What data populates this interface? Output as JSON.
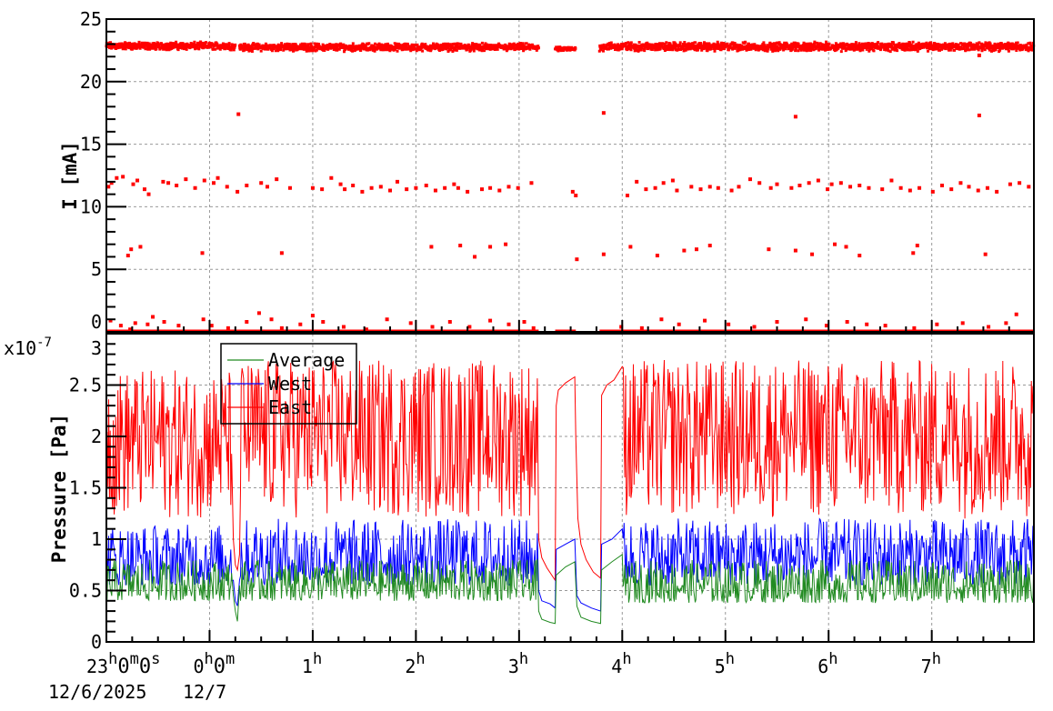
{
  "chart_data": [
    {
      "type": "scatter",
      "ylabel": "I [mA]",
      "xlim_hours": [
        -1,
        7.99
      ],
      "ylim": [
        0,
        25
      ],
      "yticks": [
        "0",
        "5",
        "10",
        "15",
        "20",
        "25"
      ],
      "grid": true,
      "color": "#ff0000",
      "dense_band": [
        {
          "from": -1,
          "to": 0.25,
          "min": 22.5,
          "max": 23.2
        },
        {
          "from": 0.29,
          "to": 3.19,
          "min": 22.4,
          "max": 23.1
        },
        {
          "from": 3.35,
          "to": 3.55,
          "min": 22.4,
          "max": 22.8
        },
        {
          "from": 3.78,
          "to": 7.99,
          "min": 22.4,
          "max": 23.2
        }
      ],
      "zero_line": [
        [
          -1,
          3.19
        ],
        [
          3.35,
          3.55
        ],
        [
          3.78,
          7.99
        ]
      ],
      "points": [
        [
          -0.98,
          11.6
        ],
        [
          -0.95,
          11.9
        ],
        [
          -0.9,
          12.3
        ],
        [
          -0.84,
          12.4
        ],
        [
          -0.74,
          11.8
        ],
        [
          -0.7,
          12.1
        ],
        [
          -0.63,
          11.4
        ],
        [
          -0.59,
          11.0
        ],
        [
          -0.45,
          12.0
        ],
        [
          -0.4,
          11.9
        ],
        [
          -0.32,
          11.7
        ],
        [
          -0.23,
          12.2
        ],
        [
          -0.14,
          11.5
        ],
        [
          -0.05,
          12.1
        ],
        [
          0.04,
          11.9
        ],
        [
          0.08,
          12.3
        ],
        [
          0.17,
          11.6
        ],
        [
          0.27,
          11.2
        ],
        [
          0.36,
          11.7
        ],
        [
          0.5,
          11.9
        ],
        [
          0.56,
          11.6
        ],
        [
          0.65,
          12.2
        ],
        [
          0.78,
          11.5
        ],
        [
          1.0,
          11.5
        ],
        [
          1.09,
          11.4
        ],
        [
          1.18,
          12.3
        ],
        [
          1.27,
          11.8
        ],
        [
          1.31,
          11.4
        ],
        [
          1.39,
          11.7
        ],
        [
          1.48,
          11.2
        ],
        [
          1.57,
          11.5
        ],
        [
          1.66,
          11.6
        ],
        [
          1.75,
          11.3
        ],
        [
          1.82,
          12.0
        ],
        [
          1.91,
          11.4
        ],
        [
          2.0,
          11.5
        ],
        [
          2.1,
          11.7
        ],
        [
          2.19,
          11.3
        ],
        [
          2.28,
          11.5
        ],
        [
          2.37,
          11.8
        ],
        [
          2.41,
          11.5
        ],
        [
          2.5,
          11.2
        ],
        [
          2.64,
          11.4
        ],
        [
          2.72,
          11.5
        ],
        [
          2.81,
          11.3
        ],
        [
          2.9,
          11.6
        ],
        [
          2.99,
          11.5
        ],
        [
          3.12,
          11.9
        ],
        [
          3.52,
          11.2
        ],
        [
          3.55,
          10.9
        ],
        [
          4.05,
          10.9
        ],
        [
          4.14,
          12.0
        ],
        [
          4.23,
          11.4
        ],
        [
          4.32,
          11.5
        ],
        [
          4.4,
          11.9
        ],
        [
          4.49,
          12.1
        ],
        [
          4.53,
          11.3
        ],
        [
          4.67,
          11.6
        ],
        [
          4.76,
          11.4
        ],
        [
          4.85,
          11.6
        ],
        [
          4.93,
          11.5
        ],
        [
          5.06,
          11.3
        ],
        [
          5.13,
          11.6
        ],
        [
          5.24,
          12.2
        ],
        [
          5.33,
          11.9
        ],
        [
          5.44,
          11.5
        ],
        [
          5.5,
          11.8
        ],
        [
          5.64,
          11.5
        ],
        [
          5.72,
          11.7
        ],
        [
          5.81,
          11.9
        ],
        [
          5.9,
          12.1
        ],
        [
          5.99,
          11.4
        ],
        [
          6.03,
          11.8
        ],
        [
          6.12,
          11.9
        ],
        [
          6.21,
          11.6
        ],
        [
          6.3,
          11.7
        ],
        [
          6.39,
          11.5
        ],
        [
          6.52,
          11.4
        ],
        [
          6.61,
          12.1
        ],
        [
          6.7,
          11.5
        ],
        [
          6.79,
          11.3
        ],
        [
          6.88,
          11.5
        ],
        [
          7.01,
          11.2
        ],
        [
          7.1,
          11.7
        ],
        [
          7.19,
          11.4
        ],
        [
          7.28,
          11.9
        ],
        [
          7.36,
          11.6
        ],
        [
          7.45,
          11.3
        ],
        [
          7.54,
          11.5
        ],
        [
          7.63,
          11.2
        ],
        [
          7.76,
          11.8
        ],
        [
          7.85,
          11.9
        ],
        [
          7.94,
          11.6
        ],
        [
          -0.79,
          6.1
        ],
        [
          -0.76,
          6.6
        ],
        [
          -0.67,
          6.8
        ],
        [
          -0.07,
          6.3
        ],
        [
          0.7,
          6.3
        ],
        [
          2.15,
          6.8
        ],
        [
          2.43,
          6.9
        ],
        [
          2.57,
          6.0
        ],
        [
          2.72,
          6.8
        ],
        [
          2.87,
          7.0
        ],
        [
          3.56,
          5.8
        ],
        [
          3.82,
          6.2
        ],
        [
          4.08,
          6.8
        ],
        [
          4.34,
          6.1
        ],
        [
          4.6,
          6.5
        ],
        [
          4.72,
          6.6
        ],
        [
          4.85,
          6.9
        ],
        [
          5.42,
          6.6
        ],
        [
          5.68,
          6.5
        ],
        [
          5.84,
          6.2
        ],
        [
          6.06,
          7.0
        ],
        [
          6.17,
          6.8
        ],
        [
          6.3,
          6.1
        ],
        [
          6.82,
          6.3
        ],
        [
          6.86,
          6.9
        ],
        [
          7.52,
          6.2
        ],
        [
          0.28,
          17.4
        ],
        [
          3.82,
          17.5
        ],
        [
          5.68,
          17.2
        ],
        [
          7.46,
          17.3
        ],
        [
          7.46,
          22.1
        ],
        [
          -0.96,
          0.9
        ],
        [
          -0.86,
          0.5
        ],
        [
          -0.77,
          0.2
        ],
        [
          -0.72,
          0.7
        ],
        [
          -0.6,
          0.6
        ],
        [
          -0.55,
          1.2
        ],
        [
          -0.44,
          0.8
        ],
        [
          -0.3,
          0.5
        ],
        [
          -0.06,
          1.0
        ],
        [
          0.02,
          0.5
        ],
        [
          0.18,
          0.3
        ],
        [
          0.36,
          0.8
        ],
        [
          0.48,
          1.5
        ],
        [
          0.6,
          1.0
        ],
        [
          0.7,
          0.3
        ],
        [
          0.88,
          0.6
        ],
        [
          1.0,
          1.3
        ],
        [
          1.1,
          0.8
        ],
        [
          1.3,
          0.4
        ],
        [
          1.52,
          0.2
        ],
        [
          1.72,
          1.0
        ],
        [
          1.95,
          0.7
        ],
        [
          2.16,
          0.4
        ],
        [
          2.33,
          0.8
        ],
        [
          2.52,
          0.4
        ],
        [
          2.72,
          0.9
        ],
        [
          2.9,
          0.6
        ],
        [
          3.05,
          0.8
        ],
        [
          3.14,
          0.3
        ],
        [
          3.99,
          0.4
        ],
        [
          4.19,
          0.3
        ],
        [
          4.38,
          1.0
        ],
        [
          4.55,
          0.6
        ],
        [
          4.8,
          0.9
        ],
        [
          5.03,
          0.6
        ],
        [
          5.28,
          0.4
        ],
        [
          5.5,
          0.8
        ],
        [
          5.78,
          1.0
        ],
        [
          5.98,
          0.5
        ],
        [
          6.18,
          0.8
        ],
        [
          6.37,
          0.6
        ],
        [
          6.55,
          0.5
        ],
        [
          6.83,
          0.3
        ],
        [
          7.05,
          0.6
        ],
        [
          7.3,
          0.7
        ],
        [
          7.55,
          0.4
        ],
        [
          7.72,
          0.7
        ],
        [
          7.82,
          1.4
        ]
      ]
    },
    {
      "type": "line",
      "ylabel": "Pressure [Pa]",
      "yscale_label": "x10",
      "yscale_exponent": "-7",
      "xlim_hours": [
        -1,
        7.99
      ],
      "ylim": [
        0,
        3
      ],
      "yticks": [
        "0",
        "0.5",
        "1",
        "1.5",
        "2",
        "2.5",
        "3"
      ],
      "grid": true,
      "legend_position": "top-left",
      "x_tick_labels": [
        {
          "hour": -1,
          "main": "23",
          "parts": [
            [
              "h",
              "0"
            ],
            [
              "m",
              "0"
            ],
            [
              "s",
              ""
            ]
          ]
        },
        {
          "hour": 0,
          "main": "0",
          "parts": [
            [
              "h",
              "0"
            ],
            [
              "m",
              ""
            ]
          ]
        },
        {
          "hour": 1,
          "main": "1",
          "parts": [
            [
              "h",
              ""
            ]
          ]
        },
        {
          "hour": 2,
          "main": "2",
          "parts": [
            [
              "h",
              ""
            ]
          ]
        },
        {
          "hour": 3,
          "main": "3",
          "parts": [
            [
              "h",
              ""
            ]
          ]
        },
        {
          "hour": 4,
          "main": "4",
          "parts": [
            [
              "h",
              ""
            ]
          ]
        },
        {
          "hour": 5,
          "main": "5",
          "parts": [
            [
              "h",
              ""
            ]
          ]
        },
        {
          "hour": 6,
          "main": "6",
          "parts": [
            [
              "h",
              ""
            ]
          ]
        },
        {
          "hour": 7,
          "main": "7",
          "parts": [
            [
              "h",
              ""
            ]
          ]
        }
      ],
      "date_labels": [
        "12/6/2025",
        "12/7"
      ],
      "series": [
        {
          "name": "East",
          "color": "#ff0000",
          "pieces": [
            {
              "noise": [
                -1,
                0.22,
                1.2,
                2.65
              ]
            },
            {
              "points": [
                [
                  0.23,
                  1.0
                ],
                [
                  0.25,
                  0.75
                ],
                [
                  0.27,
                  0.7
                ],
                [
                  0.29,
                  0.85
                ]
              ]
            },
            {
              "noise": [
                0.3,
                3.18,
                1.2,
                2.75
              ]
            },
            {
              "points": [
                [
                  3.19,
                  1.0
                ],
                [
                  3.22,
                  0.82
                ],
                [
                  3.27,
                  0.72
                ],
                [
                  3.31,
                  0.66
                ],
                [
                  3.35,
                  0.6
                ]
              ]
            },
            {
              "points": [
                [
                  3.36,
                  2.3
                ],
                [
                  3.38,
                  2.45
                ],
                [
                  3.45,
                  2.52
                ],
                [
                  3.54,
                  2.58
                ]
              ]
            },
            {
              "points": [
                [
                  3.55,
                  2.0
                ],
                [
                  3.57,
                  1.2
                ],
                [
                  3.6,
                  0.95
                ],
                [
                  3.65,
                  0.8
                ],
                [
                  3.72,
                  0.68
                ],
                [
                  3.79,
                  0.62
                ]
              ]
            },
            {
              "points": [
                [
                  3.8,
                  2.4
                ],
                [
                  3.85,
                  2.5
                ],
                [
                  3.92,
                  2.55
                ],
                [
                  4.0,
                  2.68
                ]
              ]
            },
            {
              "noise": [
                4.01,
                7.99,
                1.2,
                2.75
              ]
            }
          ]
        },
        {
          "name": "West",
          "color": "#0000ff",
          "pieces": [
            {
              "noise": [
                -1,
                0.22,
                0.55,
                1.15
              ]
            },
            {
              "points": [
                [
                  0.23,
                  0.6
                ],
                [
                  0.25,
                  0.4
                ],
                [
                  0.27,
                  0.35
                ],
                [
                  0.29,
                  0.6
                ]
              ]
            },
            {
              "noise": [
                0.3,
                3.18,
                0.55,
                1.2
              ]
            },
            {
              "points": [
                [
                  3.19,
                  0.5
                ],
                [
                  3.22,
                  0.4
                ],
                [
                  3.3,
                  0.37
                ],
                [
                  3.35,
                  0.33
                ]
              ]
            },
            {
              "points": [
                [
                  3.36,
                  0.9
                ],
                [
                  3.45,
                  0.95
                ],
                [
                  3.54,
                  1.0
                ]
              ]
            },
            {
              "points": [
                [
                  3.56,
                  0.45
                ],
                [
                  3.6,
                  0.38
                ],
                [
                  3.7,
                  0.33
                ],
                [
                  3.79,
                  0.3
                ]
              ]
            },
            {
              "points": [
                [
                  3.8,
                  0.95
                ],
                [
                  3.9,
                  1.0
                ],
                [
                  4.0,
                  1.1
                ]
              ]
            },
            {
              "noise": [
                4.01,
                7.99,
                0.55,
                1.2
              ]
            }
          ]
        },
        {
          "name": "Average",
          "color": "#228b22",
          "pieces": [
            {
              "noise": [
                -1,
                0.22,
                0.4,
                0.8
              ]
            },
            {
              "points": [
                [
                  0.23,
                  0.45
                ],
                [
                  0.25,
                  0.3
                ],
                [
                  0.27,
                  0.2
                ],
                [
                  0.29,
                  0.55
                ]
              ]
            },
            {
              "noise": [
                0.3,
                3.18,
                0.4,
                0.8
              ]
            },
            {
              "points": [
                [
                  3.19,
                  0.3
                ],
                [
                  3.22,
                  0.22
                ],
                [
                  3.3,
                  0.19
                ],
                [
                  3.35,
                  0.18
                ]
              ]
            },
            {
              "points": [
                [
                  3.36,
                  0.65
                ],
                [
                  3.45,
                  0.73
                ],
                [
                  3.54,
                  0.78
                ]
              ]
            },
            {
              "points": [
                [
                  3.56,
                  0.35
                ],
                [
                  3.6,
                  0.24
                ],
                [
                  3.7,
                  0.2
                ],
                [
                  3.79,
                  0.18
                ]
              ]
            },
            {
              "points": [
                [
                  3.8,
                  0.7
                ],
                [
                  3.9,
                  0.78
                ],
                [
                  4.0,
                  0.85
                ]
              ]
            },
            {
              "noise": [
                4.01,
                7.99,
                0.38,
                0.8
              ]
            }
          ]
        }
      ],
      "legend": [
        "Average",
        "West",
        "East"
      ]
    }
  ]
}
